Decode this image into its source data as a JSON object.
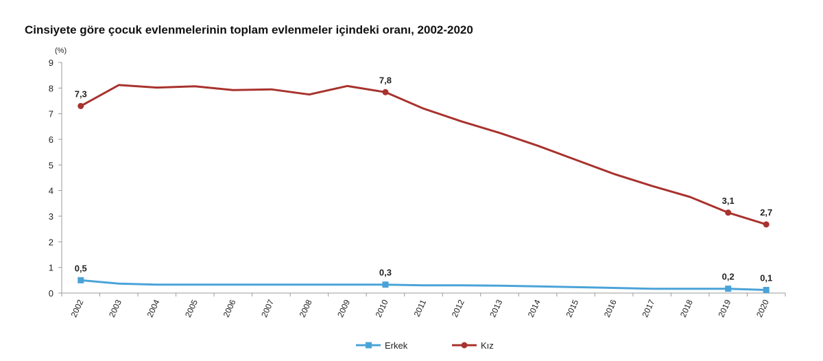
{
  "chart_data": {
    "type": "line",
    "title": "Cinsiyete göre çocuk evlenmelerinin toplam evlenmeler içindeki oranı, 2002-2020",
    "ylabel": "(%)",
    "xlabel": "",
    "ylim": [
      0,
      9
    ],
    "yticks": [
      "0",
      "1",
      "2",
      "3",
      "4",
      "5",
      "6",
      "7",
      "8",
      "9"
    ],
    "categories": [
      "2002",
      "2003",
      "2004",
      "2005",
      "2006",
      "2007",
      "2008",
      "2009",
      "2010",
      "2011",
      "2012",
      "2013",
      "2014",
      "2015",
      "2016",
      "2017",
      "2018",
      "2019",
      "2020"
    ],
    "series": [
      {
        "name": "Erkek",
        "color": "#4aa3d8",
        "marker": "square",
        "values": [
          0.5,
          0.37,
          0.33,
          0.33,
          0.33,
          0.33,
          0.33,
          0.33,
          0.33,
          0.3,
          0.3,
          0.29,
          0.26,
          0.23,
          0.2,
          0.17,
          0.17,
          0.17,
          0.12
        ],
        "labels": [
          {
            "index": 0,
            "text": "0,5"
          },
          {
            "index": 8,
            "text": "0,3"
          },
          {
            "index": 17,
            "text": "0,2"
          },
          {
            "index": 18,
            "text": "0,1"
          }
        ]
      },
      {
        "name": "Kız",
        "color": "#a8322d",
        "marker": "circle",
        "values": [
          7.3,
          8.12,
          8.02,
          8.07,
          7.92,
          7.95,
          7.75,
          8.08,
          7.84,
          7.2,
          6.7,
          6.25,
          5.75,
          5.2,
          4.65,
          4.18,
          3.75,
          3.14,
          2.68
        ],
        "labels": [
          {
            "index": 0,
            "text": "7,3"
          },
          {
            "index": 8,
            "text": "7,8"
          },
          {
            "index": 17,
            "text": "3,1"
          },
          {
            "index": 18,
            "text": "2,7"
          }
        ]
      }
    ],
    "legend": {
      "position": "bottom-center"
    },
    "grid": false
  }
}
